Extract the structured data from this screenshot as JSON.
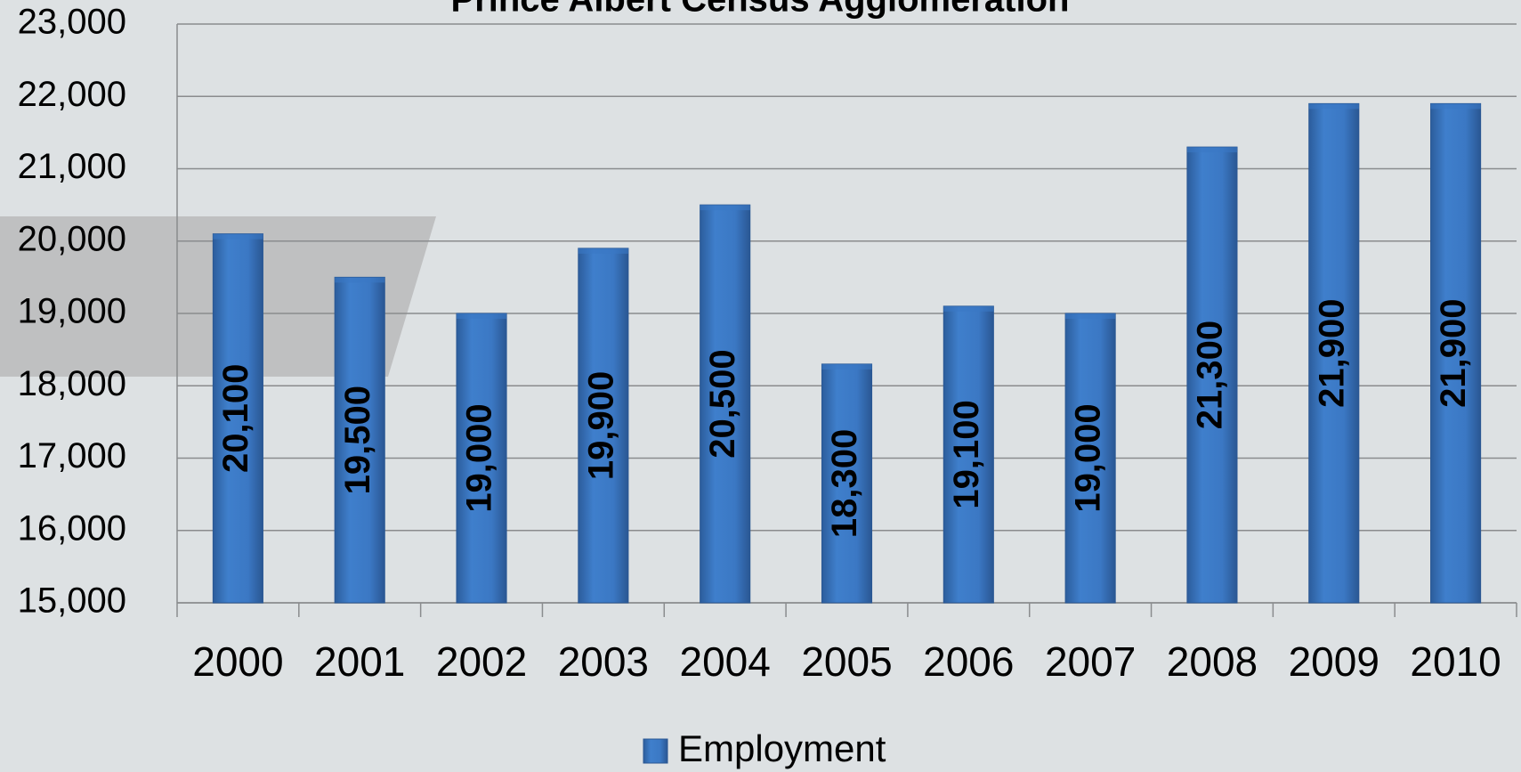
{
  "chart_data": {
    "type": "bar",
    "title": "Prince Albert Census Agglomeration",
    "categories": [
      "2000",
      "2001",
      "2002",
      "2003",
      "2004",
      "2005",
      "2006",
      "2007",
      "2008",
      "2009",
      "2010"
    ],
    "series": [
      {
        "name": "Employment",
        "color": "#3b78c4",
        "values": [
          20100,
          19500,
          19000,
          19900,
          20500,
          18300,
          19100,
          19000,
          21300,
          21900,
          21900
        ],
        "value_labels": [
          "20,100",
          "19,500",
          "19,000",
          "19,900",
          "20,500",
          "18,300",
          "19,100",
          "19,000",
          "21,300",
          "21,900",
          "21,900"
        ]
      }
    ],
    "ylim": [
      15000,
      23000
    ],
    "yticks": [
      {
        "value": 15000,
        "label": "15,000"
      },
      {
        "value": 16000,
        "label": "16,000"
      },
      {
        "value": 17000,
        "label": "17,000"
      },
      {
        "value": 18000,
        "label": "18,000"
      },
      {
        "value": 19000,
        "label": "19,000"
      },
      {
        "value": 20000,
        "label": "20,000"
      },
      {
        "value": 21000,
        "label": "21,000"
      },
      {
        "value": 22000,
        "label": "22,000"
      },
      {
        "value": 23000,
        "label": "23,000"
      }
    ],
    "grid": true,
    "legend": "bottom"
  }
}
